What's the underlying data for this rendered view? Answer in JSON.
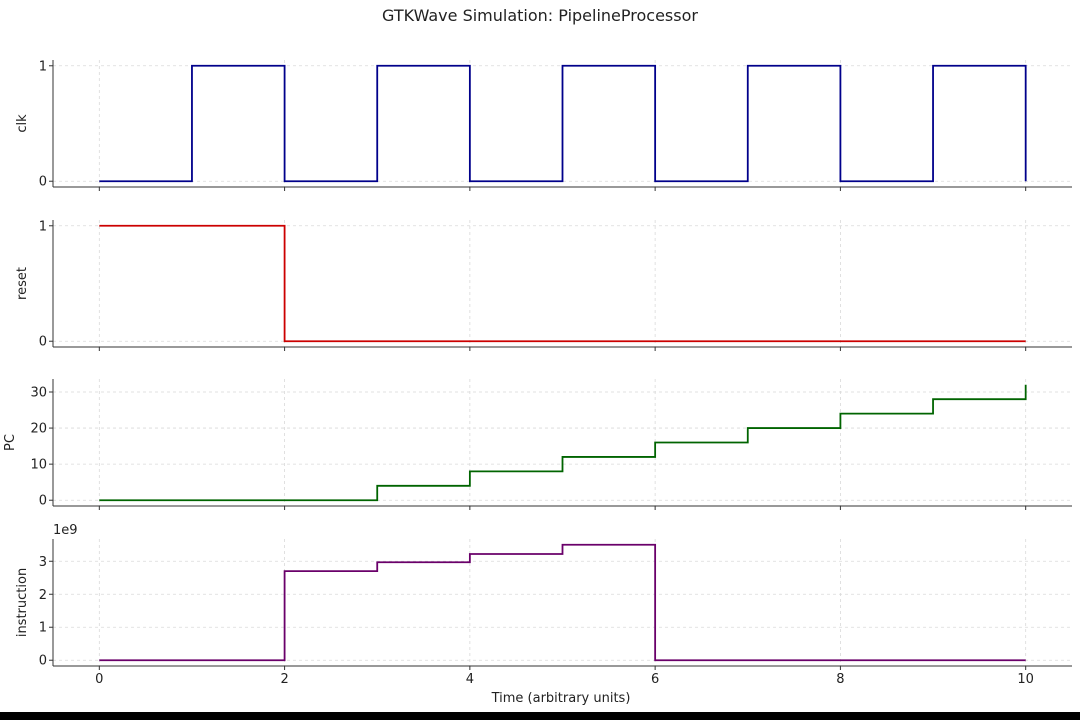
{
  "chart_data": {
    "type": "line",
    "drawstyle": "step",
    "title": "GTKWave Simulation: PipelineProcessor",
    "xlabel": "Time (arbitrary units)",
    "xlim": [
      -0.5,
      10.5
    ],
    "xticks": [
      0,
      2,
      4,
      6,
      8,
      10
    ],
    "xtick_labels": [
      "0",
      "2",
      "4",
      "6",
      "8",
      "10"
    ],
    "grid": true,
    "sharex": true,
    "panels": [
      {
        "ylabel": "clk",
        "color": "#00008b",
        "ylim": [
          -0.05,
          1.05
        ],
        "yticks": [
          0,
          1
        ],
        "ytick_labels": [
          "0",
          "1"
        ],
        "x": [
          0,
          1,
          2,
          3,
          4,
          5,
          6,
          7,
          8,
          9,
          10
        ],
        "y": [
          0,
          1,
          0,
          1,
          0,
          1,
          0,
          1,
          0,
          1,
          0
        ]
      },
      {
        "ylabel": "reset",
        "color": "#cc0000",
        "ylim": [
          -0.05,
          1.05
        ],
        "yticks": [
          0,
          1
        ],
        "ytick_labels": [
          "0",
          "1"
        ],
        "x": [
          0,
          1,
          2,
          3,
          4,
          5,
          6,
          7,
          8,
          9,
          10
        ],
        "y": [
          1,
          1,
          0,
          0,
          0,
          0,
          0,
          0,
          0,
          0,
          0
        ]
      },
      {
        "ylabel": "PC",
        "color": "#006400",
        "ylim": [
          -1.6,
          33.6
        ],
        "yticks": [
          0,
          10,
          20,
          30
        ],
        "ytick_labels": [
          "0",
          "10",
          "20",
          "30"
        ],
        "x": [
          0,
          1,
          2,
          3,
          4,
          5,
          6,
          7,
          8,
          9,
          10
        ],
        "y": [
          0,
          0,
          0,
          4,
          8,
          12,
          16,
          20,
          24,
          28,
          32
        ]
      },
      {
        "ylabel": "instruction",
        "color": "#6a006a",
        "ylim": [
          -0.175,
          3.675
        ],
        "yticks": [
          0,
          1,
          2,
          3
        ],
        "ytick_labels": [
          "0",
          "1",
          "2",
          "3"
        ],
        "offset_text": "1e9",
        "x": [
          0,
          1,
          2,
          3,
          4,
          5,
          6,
          7,
          8,
          9,
          10
        ],
        "y": [
          0,
          0,
          2.7,
          2.97,
          3.22,
          3.5,
          0,
          0,
          0,
          0,
          0
        ]
      }
    ]
  }
}
